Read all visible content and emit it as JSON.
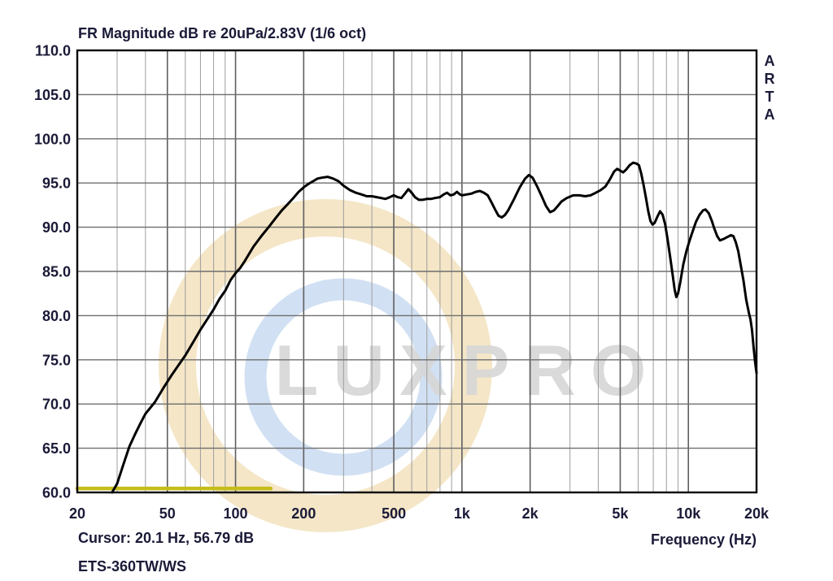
{
  "header": {
    "title": "FR Magnitude dB re 20uPa/2.83V (1/6 oct)"
  },
  "side_label": "ARTA",
  "watermark": {
    "text": "LUXPRO",
    "text_color": "#d6d6d6",
    "ring_beige_color": "#f0ddb4",
    "ring_blue_color": "#c9daf1"
  },
  "footer": {
    "cursor_readout": "Cursor: 20.1 Hz, 56.79 dB",
    "device_label": "ETS-360TW/WS",
    "x_axis_title": "Frequency (Hz)"
  },
  "chart_data": {
    "type": "line",
    "title": "FR Magnitude dB re 20uPa/2.83V (1/6 oct)",
    "xlabel": "Frequency (Hz)",
    "ylabel": "dB re 20uPa/2.83V",
    "x_scale": "log",
    "xlim": [
      20,
      20000
    ],
    "ylim": [
      60,
      110
    ],
    "grid": true,
    "x_ticks": [
      {
        "f": 20,
        "label": "20"
      },
      {
        "f": 50,
        "label": "50"
      },
      {
        "f": 100,
        "label": "100"
      },
      {
        "f": 200,
        "label": "200"
      },
      {
        "f": 500,
        "label": "500"
      },
      {
        "f": 1000,
        "label": "1k"
      },
      {
        "f": 2000,
        "label": "2k"
      },
      {
        "f": 5000,
        "label": "5k"
      },
      {
        "f": 10000,
        "label": "10k"
      },
      {
        "f": 20000,
        "label": "20k"
      }
    ],
    "x_minor_gridlines": [
      30,
      40,
      60,
      70,
      80,
      90,
      300,
      400,
      600,
      700,
      800,
      900,
      3000,
      4000,
      6000,
      7000,
      8000,
      9000
    ],
    "y_ticks": [
      {
        "v": 110,
        "label": "110.0"
      },
      {
        "v": 105,
        "label": "105.0"
      },
      {
        "v": 100,
        "label": "100.0"
      },
      {
        "v": 95,
        "label": "95.0"
      },
      {
        "v": 90,
        "label": "90.0"
      },
      {
        "v": 85,
        "label": "85.0"
      },
      {
        "v": 80,
        "label": "80.0"
      },
      {
        "v": 75,
        "label": "75.0"
      },
      {
        "v": 70,
        "label": "70.0"
      },
      {
        "v": 65,
        "label": "65.0"
      },
      {
        "v": 60,
        "label": "60.0"
      }
    ],
    "series": [
      {
        "name": "frequency-response",
        "color": "#000000",
        "width": 3,
        "points": [
          [
            28.5,
            60.0
          ],
          [
            30,
            61.0
          ],
          [
            32,
            63.2
          ],
          [
            34,
            65.2
          ],
          [
            36,
            66.6
          ],
          [
            38,
            67.8
          ],
          [
            40,
            68.9
          ],
          [
            44,
            70.2
          ],
          [
            48,
            71.8
          ],
          [
            52,
            73.2
          ],
          [
            56,
            74.4
          ],
          [
            60,
            75.5
          ],
          [
            65,
            77.0
          ],
          [
            70,
            78.4
          ],
          [
            75,
            79.6
          ],
          [
            80,
            80.7
          ],
          [
            85,
            81.9
          ],
          [
            90,
            82.8
          ],
          [
            95,
            84.0
          ],
          [
            100,
            84.8
          ],
          [
            105,
            85.4
          ],
          [
            110,
            86.2
          ],
          [
            120,
            87.8
          ],
          [
            130,
            89.0
          ],
          [
            140,
            90.0
          ],
          [
            150,
            91.0
          ],
          [
            160,
            91.9
          ],
          [
            170,
            92.6
          ],
          [
            180,
            93.3
          ],
          [
            190,
            94.0
          ],
          [
            200,
            94.5
          ],
          [
            210,
            94.9
          ],
          [
            220,
            95.2
          ],
          [
            230,
            95.5
          ],
          [
            240,
            95.6
          ],
          [
            255,
            95.7
          ],
          [
            270,
            95.5
          ],
          [
            285,
            95.2
          ],
          [
            300,
            94.7
          ],
          [
            320,
            94.2
          ],
          [
            340,
            93.9
          ],
          [
            360,
            93.7
          ],
          [
            380,
            93.5
          ],
          [
            400,
            93.5
          ],
          [
            420,
            93.4
          ],
          [
            440,
            93.3
          ],
          [
            460,
            93.2
          ],
          [
            480,
            93.4
          ],
          [
            500,
            93.6
          ],
          [
            520,
            93.4
          ],
          [
            540,
            93.3
          ],
          [
            560,
            93.8
          ],
          [
            580,
            94.3
          ],
          [
            600,
            93.9
          ],
          [
            620,
            93.4
          ],
          [
            645,
            93.1
          ],
          [
            670,
            93.1
          ],
          [
            700,
            93.2
          ],
          [
            730,
            93.2
          ],
          [
            760,
            93.3
          ],
          [
            800,
            93.4
          ],
          [
            830,
            93.7
          ],
          [
            860,
            93.9
          ],
          [
            890,
            93.6
          ],
          [
            920,
            93.7
          ],
          [
            950,
            94.0
          ],
          [
            980,
            93.7
          ],
          [
            1000,
            93.6
          ],
          [
            1050,
            93.7
          ],
          [
            1100,
            93.8
          ],
          [
            1150,
            94.0
          ],
          [
            1200,
            94.1
          ],
          [
            1250,
            93.9
          ],
          [
            1300,
            93.6
          ],
          [
            1350,
            92.8
          ],
          [
            1400,
            92.0
          ],
          [
            1450,
            91.3
          ],
          [
            1500,
            91.1
          ],
          [
            1550,
            91.4
          ],
          [
            1600,
            91.9
          ],
          [
            1700,
            93.2
          ],
          [
            1800,
            94.5
          ],
          [
            1900,
            95.5
          ],
          [
            1975,
            95.9
          ],
          [
            2050,
            95.6
          ],
          [
            2150,
            94.6
          ],
          [
            2250,
            93.5
          ],
          [
            2350,
            92.4
          ],
          [
            2450,
            91.7
          ],
          [
            2550,
            91.9
          ],
          [
            2650,
            92.4
          ],
          [
            2750,
            92.9
          ],
          [
            2900,
            93.3
          ],
          [
            3100,
            93.6
          ],
          [
            3300,
            93.6
          ],
          [
            3500,
            93.5
          ],
          [
            3700,
            93.6
          ],
          [
            3900,
            93.9
          ],
          [
            4100,
            94.2
          ],
          [
            4300,
            94.6
          ],
          [
            4500,
            95.4
          ],
          [
            4700,
            96.3
          ],
          [
            4850,
            96.6
          ],
          [
            5000,
            96.4
          ],
          [
            5150,
            96.2
          ],
          [
            5300,
            96.5
          ],
          [
            5500,
            97.0
          ],
          [
            5700,
            97.3
          ],
          [
            5900,
            97.2
          ],
          [
            6050,
            97.0
          ],
          [
            6200,
            96.0
          ],
          [
            6350,
            94.7
          ],
          [
            6500,
            93.3
          ],
          [
            6650,
            91.8
          ],
          [
            6800,
            90.7
          ],
          [
            6950,
            90.3
          ],
          [
            7100,
            90.5
          ],
          [
            7300,
            91.2
          ],
          [
            7500,
            91.8
          ],
          [
            7700,
            91.4
          ],
          [
            7900,
            90.3
          ],
          [
            8100,
            88.6
          ],
          [
            8300,
            86.7
          ],
          [
            8500,
            84.8
          ],
          [
            8700,
            82.9
          ],
          [
            8850,
            82.1
          ],
          [
            9000,
            82.5
          ],
          [
            9200,
            83.7
          ],
          [
            9500,
            85.8
          ],
          [
            9800,
            87.3
          ],
          [
            10100,
            88.4
          ],
          [
            10400,
            89.4
          ],
          [
            10800,
            90.6
          ],
          [
            11200,
            91.4
          ],
          [
            11600,
            91.9
          ],
          [
            11900,
            92.0
          ],
          [
            12300,
            91.6
          ],
          [
            12700,
            90.7
          ],
          [
            13000,
            89.9
          ],
          [
            13400,
            89.0
          ],
          [
            13800,
            88.5
          ],
          [
            14400,
            88.7
          ],
          [
            14900,
            88.9
          ],
          [
            15400,
            89.1
          ],
          [
            15800,
            89.0
          ],
          [
            16200,
            88.3
          ],
          [
            16600,
            87.3
          ],
          [
            17000,
            85.8
          ],
          [
            17500,
            84.0
          ],
          [
            18000,
            81.8
          ],
          [
            18500,
            80.3
          ],
          [
            18800,
            79.6
          ],
          [
            19100,
            78.4
          ],
          [
            19400,
            76.5
          ],
          [
            19700,
            74.8
          ],
          [
            20000,
            73.5
          ]
        ]
      },
      {
        "name": "floor-trace",
        "color": "#c5bd1a",
        "width": 4.5,
        "points": [
          [
            20,
            60.45
          ],
          [
            143,
            60.45
          ]
        ]
      }
    ]
  }
}
